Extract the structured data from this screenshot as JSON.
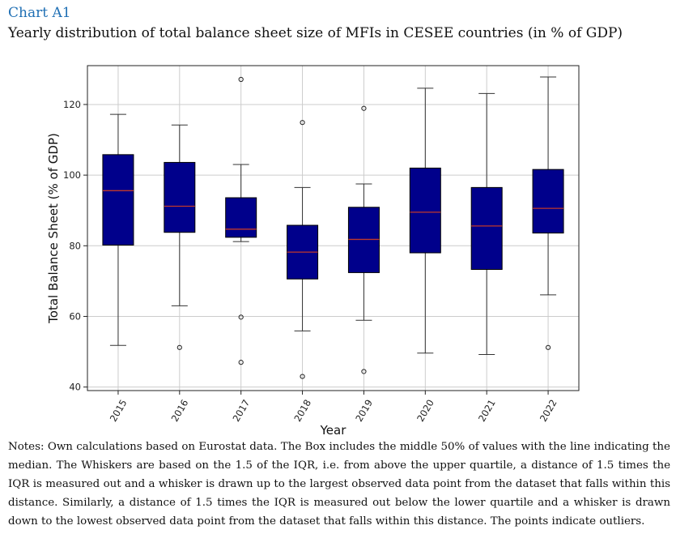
{
  "header": {
    "label": "Chart A1",
    "title": "Yearly distribution of total balance sheet size of MFIs in CESEE countries (in % of GDP)"
  },
  "notes": "Notes: Own calculations based on Eurostat data. The Box includes the middle 50% of values with the line indicating the median. The Whiskers are based on the 1.5 of the IQR, i.e. from above the upper quartile, a distance of 1.5 times the IQR is measured out and a whisker is drawn up to the largest observed data point from the dataset that falls within this distance. Similarly, a distance of 1.5 times the IQR is measured out below the lower quartile and a whisker is drawn down to the lowest observed data point from the dataset that falls within this distance. The points indicate outliers.",
  "chart_data": {
    "type": "boxplot",
    "xlabel": "Year",
    "ylabel": "Total Balance Sheet (% of GDP)",
    "ylim": [
      39,
      131
    ],
    "yticks": [
      40,
      60,
      80,
      100,
      120
    ],
    "grid": true,
    "colors": {
      "box": "#00008b",
      "median": "#c0392b",
      "whisker": "#333333",
      "grid": "#cccccc"
    },
    "categories": [
      "2015",
      "2016",
      "2017",
      "2018",
      "2019",
      "2020",
      "2021",
      "2022"
    ],
    "boxes": [
      {
        "year": "2015",
        "whisker_low": 51.8,
        "q1": 80.2,
        "median": 95.6,
        "q3": 105.8,
        "whisker_high": 117.2,
        "outliers": []
      },
      {
        "year": "2016",
        "whisker_low": 63.0,
        "q1": 83.8,
        "median": 91.2,
        "q3": 103.6,
        "whisker_high": 114.2,
        "outliers": [
          51.2
        ]
      },
      {
        "year": "2017",
        "whisker_low": 81.2,
        "q1": 82.4,
        "median": 84.7,
        "q3": 93.6,
        "whisker_high": 103.0,
        "outliers": [
          127.1,
          59.8,
          47.0
        ]
      },
      {
        "year": "2018",
        "whisker_low": 55.9,
        "q1": 70.6,
        "median": 78.2,
        "q3": 85.8,
        "whisker_high": 96.5,
        "outliers": [
          114.9,
          43.0
        ]
      },
      {
        "year": "2019",
        "whisker_low": 58.9,
        "q1": 72.4,
        "median": 81.8,
        "q3": 90.9,
        "whisker_high": 97.5,
        "outliers": [
          118.9,
          44.4
        ]
      },
      {
        "year": "2020",
        "whisker_low": 49.6,
        "q1": 78.0,
        "median": 89.5,
        "q3": 102.0,
        "whisker_high": 124.6,
        "outliers": []
      },
      {
        "year": "2021",
        "whisker_low": 49.2,
        "q1": 73.3,
        "median": 85.6,
        "q3": 96.5,
        "whisker_high": 123.1,
        "outliers": []
      },
      {
        "year": "2022",
        "whisker_low": 66.1,
        "q1": 83.6,
        "median": 90.6,
        "q3": 101.6,
        "whisker_high": 127.8,
        "outliers": [
          51.2
        ]
      }
    ]
  }
}
